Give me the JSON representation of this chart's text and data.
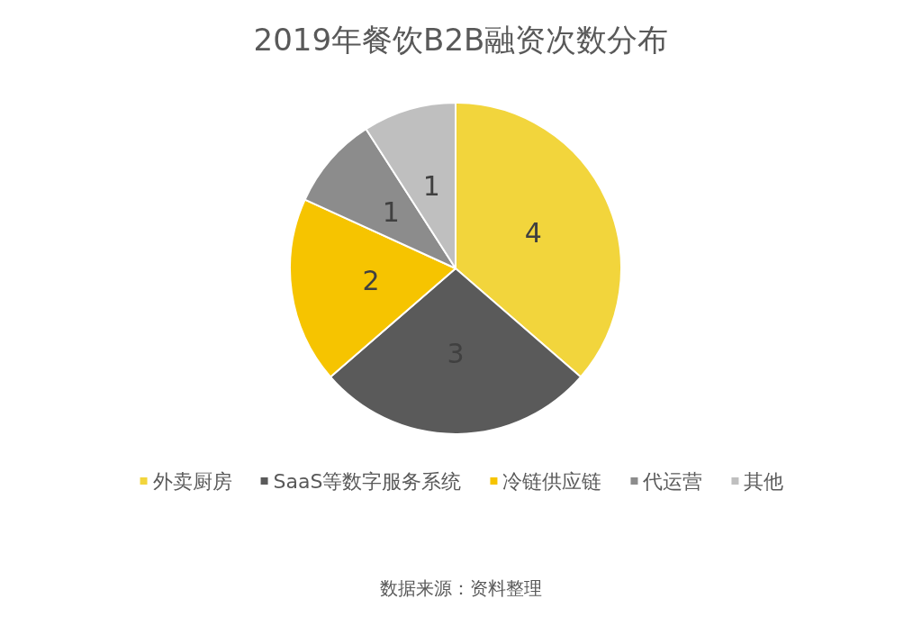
{
  "chart_data": {
    "type": "pie",
    "title": "2019年餐饮B2B融资次数分布",
    "categories": [
      "外卖厨房",
      "SaaS等数字服务系统",
      "冷链供应链",
      "代运营",
      "其他"
    ],
    "values": [
      4,
      3,
      2,
      1,
      1
    ],
    "colors": [
      "#f2d53c",
      "#5a5a5a",
      "#f6c400",
      "#8c8c8c",
      "#bfbfbf"
    ],
    "data_labels": true,
    "legend": "bottom",
    "annotations": [
      "数据来源：资料整理"
    ]
  }
}
